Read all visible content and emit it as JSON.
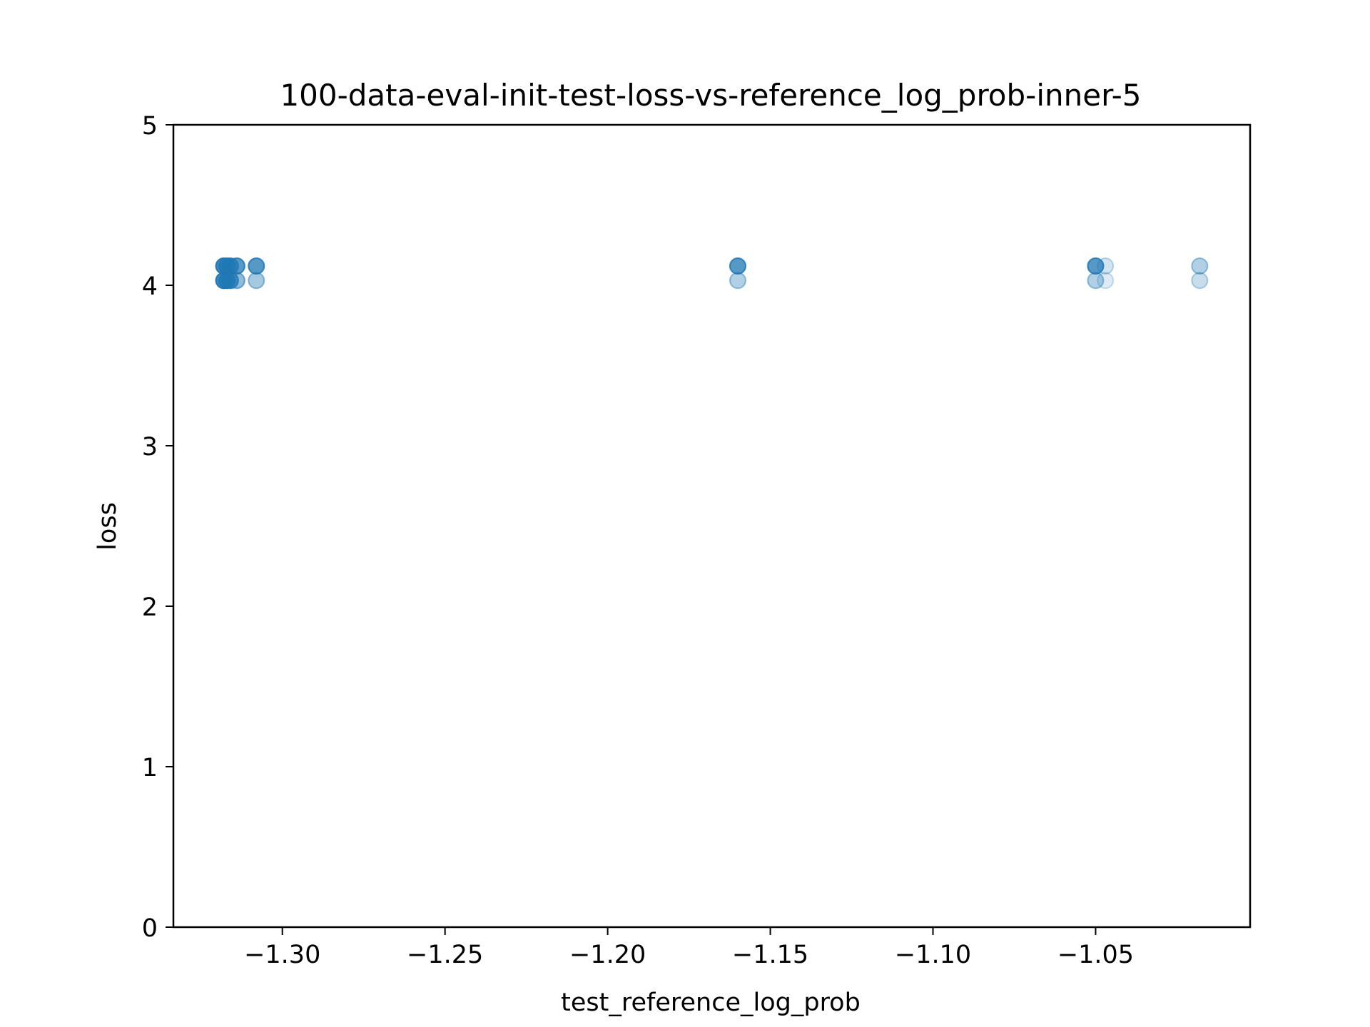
{
  "chart_data": {
    "type": "scatter",
    "title": "100-data-eval-init-test-loss-vs-reference_log_prob-inner-5",
    "xlabel": "test_reference_log_prob",
    "ylabel": "loss",
    "xlim": [
      -1.3335,
      -1.0025
    ],
    "ylim": [
      0,
      5
    ],
    "xticks": [
      -1.3,
      -1.25,
      -1.2,
      -1.15,
      -1.1,
      -1.05
    ],
    "xtick_labels": [
      "−1.30",
      "−1.25",
      "−1.20",
      "−1.15",
      "−1.10",
      "−1.05"
    ],
    "yticks": [
      0,
      1,
      2,
      3,
      4,
      5
    ],
    "ytick_labels": [
      "0",
      "1",
      "2",
      "3",
      "4",
      "5"
    ],
    "grid": false,
    "color": "#1f77b4",
    "series": [
      {
        "points": [
          {
            "x": -1.318,
            "y": 4.12,
            "alpha": 0.5
          },
          {
            "x": -1.318,
            "y": 4.12,
            "alpha": 0.5
          },
          {
            "x": -1.318,
            "y": 4.12,
            "alpha": 0.5
          },
          {
            "x": -1.317,
            "y": 4.12,
            "alpha": 0.5
          },
          {
            "x": -1.317,
            "y": 4.12,
            "alpha": 0.5
          },
          {
            "x": -1.316,
            "y": 4.12,
            "alpha": 0.5
          },
          {
            "x": -1.316,
            "y": 4.12,
            "alpha": 0.5
          },
          {
            "x": -1.314,
            "y": 4.12,
            "alpha": 0.5
          },
          {
            "x": -1.314,
            "y": 4.12,
            "alpha": 0.5
          },
          {
            "x": -1.308,
            "y": 4.12,
            "alpha": 0.5
          },
          {
            "x": -1.308,
            "y": 4.12,
            "alpha": 0.5
          },
          {
            "x": -1.318,
            "y": 4.03,
            "alpha": 0.5
          },
          {
            "x": -1.318,
            "y": 4.03,
            "alpha": 0.5
          },
          {
            "x": -1.318,
            "y": 4.03,
            "alpha": 0.5
          },
          {
            "x": -1.317,
            "y": 4.03,
            "alpha": 0.5
          },
          {
            "x": -1.317,
            "y": 4.03,
            "alpha": 0.5
          },
          {
            "x": -1.316,
            "y": 4.03,
            "alpha": 0.5
          },
          {
            "x": -1.316,
            "y": 4.03,
            "alpha": 0.5
          },
          {
            "x": -1.314,
            "y": 4.03,
            "alpha": 0.5
          },
          {
            "x": -1.308,
            "y": 4.03,
            "alpha": 0.4
          },
          {
            "x": -1.16,
            "y": 4.12,
            "alpha": 0.5
          },
          {
            "x": -1.16,
            "y": 4.12,
            "alpha": 0.5
          },
          {
            "x": -1.16,
            "y": 4.03,
            "alpha": 0.35
          },
          {
            "x": -1.05,
            "y": 4.12,
            "alpha": 0.5
          },
          {
            "x": -1.05,
            "y": 4.12,
            "alpha": 0.5
          },
          {
            "x": -1.05,
            "y": 4.03,
            "alpha": 0.35
          },
          {
            "x": -1.047,
            "y": 4.12,
            "alpha": 0.2
          },
          {
            "x": -1.047,
            "y": 4.03,
            "alpha": 0.15
          },
          {
            "x": -1.018,
            "y": 4.12,
            "alpha": 0.35
          },
          {
            "x": -1.018,
            "y": 4.03,
            "alpha": 0.25
          }
        ]
      }
    ]
  }
}
